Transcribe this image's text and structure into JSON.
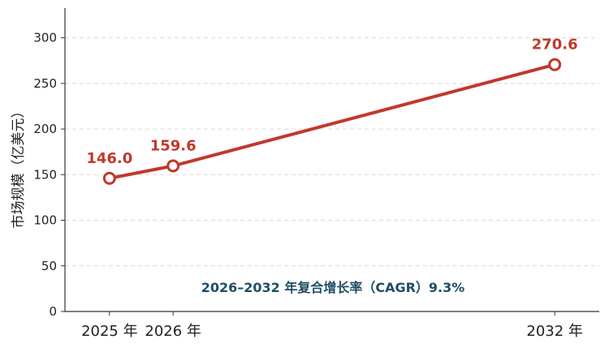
{
  "chart_data": {
    "type": "line",
    "title": "",
    "xlabel": "",
    "ylabel": "市场规模（亿美元）",
    "x": [
      2025,
      2026,
      2032
    ],
    "x_tick_labels": [
      "2025 年",
      "2026 年",
      "2032 年"
    ],
    "series": [
      {
        "name": "",
        "values": [
          146.0,
          159.6,
          270.6
        ],
        "labels": [
          "146.0",
          "159.6",
          "270.6"
        ]
      }
    ],
    "ylim": [
      0,
      320
    ],
    "y_ticks": [
      0,
      50,
      100,
      150,
      200,
      250,
      300
    ],
    "xlim": [
      2024.3,
      2032.7
    ],
    "grid": "horizontal-dashed",
    "annotation": "2026–2032 年复合增长率（CAGR）9.3%",
    "colors": {
      "line": "#c0392b",
      "annotation": "#1f4e66",
      "grid": "#d9d9d9",
      "axis": "#333333"
    }
  }
}
